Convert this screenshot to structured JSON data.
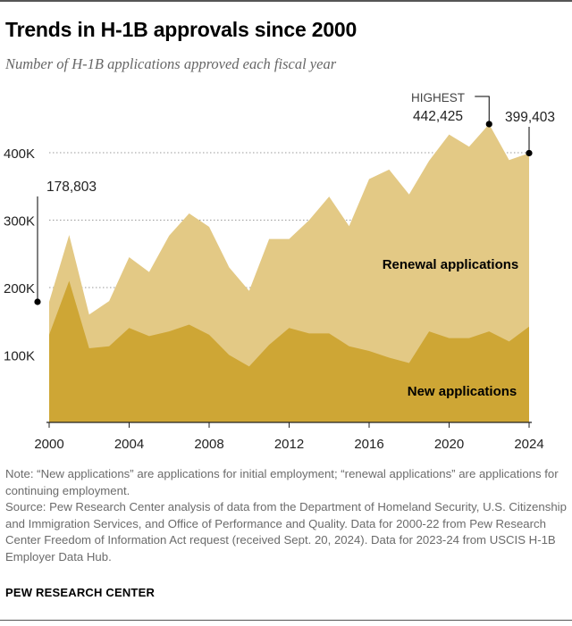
{
  "title": "Trends in H-1B approvals since 2000",
  "subtitle": "Number of H-1B applications approved each fiscal year",
  "note": "Note: “New applications” are applications for initial employment; “renewal applications” are applications for continuing employment.",
  "source": "Source: Pew Research Center analysis of data from the Department of Homeland Security, U.S. Citizenship and Immigration Services, and Office of Performance and Quality. Data for 2000-22 from Pew Research Center Freedom of Information Act request (received Sept. 20, 2024). Data for 2023-24 from USCIS H-1B Employer Data Hub.",
  "brand": "PEW RESEARCH CENTER",
  "colors": {
    "renewal": "#e3c985",
    "new": "#cea635",
    "grid": "#999999",
    "axis": "#222222"
  },
  "chart_data": {
    "type": "area",
    "stacked": true,
    "x": [
      2000,
      2001,
      2002,
      2003,
      2004,
      2005,
      2006,
      2007,
      2008,
      2009,
      2010,
      2011,
      2012,
      2013,
      2014,
      2015,
      2016,
      2017,
      2018,
      2019,
      2020,
      2021,
      2022,
      2023,
      2024
    ],
    "series": [
      {
        "name": "New applications",
        "values": [
          130000,
          210000,
          110000,
          113000,
          140000,
          128000,
          135000,
          145000,
          130000,
          100000,
          83000,
          115000,
          140000,
          132000,
          132000,
          113000,
          106000,
          96000,
          88000,
          135000,
          125000,
          125000,
          135000,
          120000,
          142000
        ]
      },
      {
        "name": "Renewal applications",
        "values": [
          48803,
          68000,
          50000,
          67000,
          105000,
          95000,
          142000,
          165000,
          160000,
          130000,
          112000,
          157000,
          132000,
          168000,
          203000,
          178000,
          255000,
          279000,
          250000,
          253000,
          302000,
          284000,
          307425,
          269000,
          257403
        ]
      }
    ],
    "ylim": [
      0,
      440000
    ],
    "yticks": [
      100000,
      200000,
      300000,
      400000
    ],
    "ytick_labels": [
      "100K",
      "200K",
      "300K",
      "400K"
    ],
    "xticks": [
      2000,
      2004,
      2008,
      2012,
      2016,
      2020,
      2024
    ],
    "xtick_labels": [
      "2000",
      "2004",
      "2008",
      "2012",
      "2016",
      "2020",
      "2024"
    ],
    "annotations": {
      "start_value": "178,803",
      "highest_label": "HIGHEST",
      "highest_value": "442,425",
      "end_value": "399,403"
    },
    "series_labels": {
      "renewal": "Renewal applications",
      "new": "New applications"
    }
  }
}
